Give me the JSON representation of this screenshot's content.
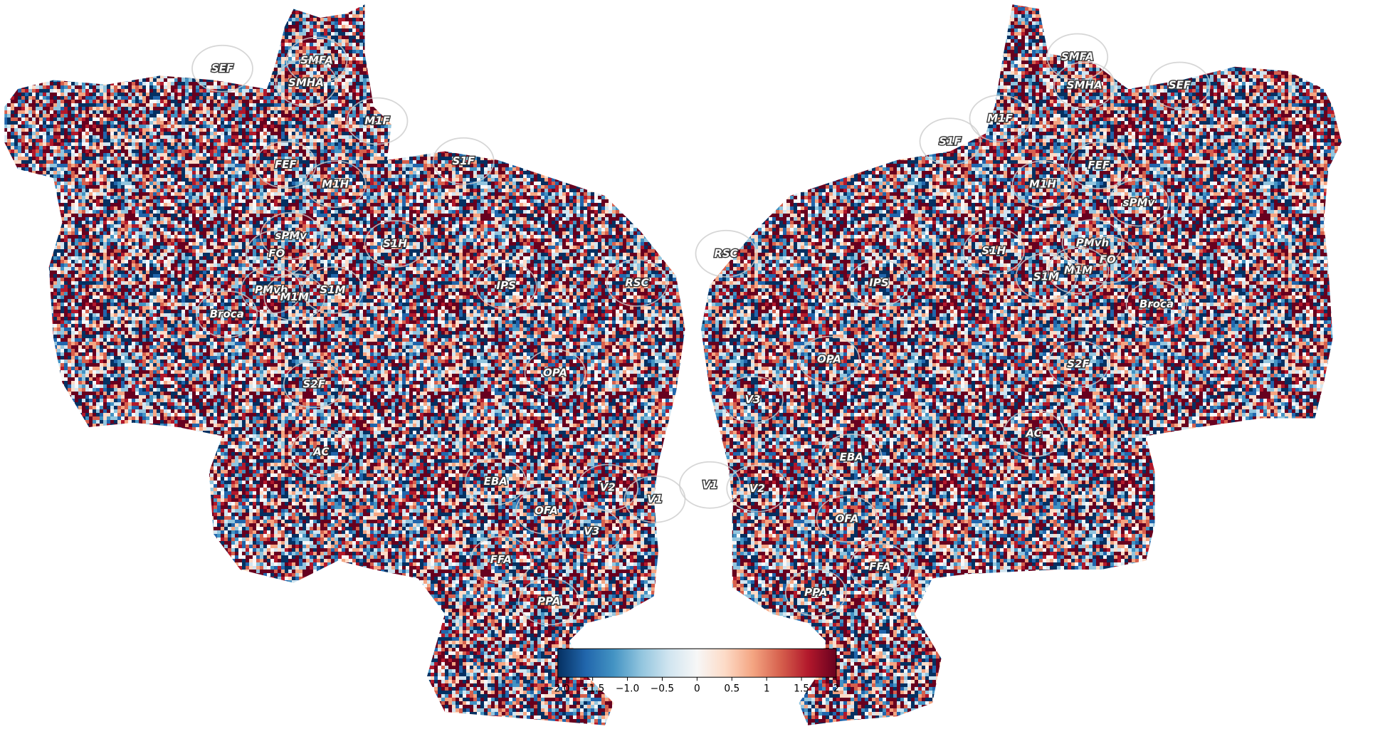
{
  "rois": {
    "left": [
      "SEF",
      "SMFA",
      "SMHA",
      "M1F",
      "FEF",
      "M1H",
      "S1F",
      "sPMv",
      "FO",
      "S1H",
      "PMvh",
      "M1M",
      "S1M",
      "Broca",
      "IPS",
      "RSC",
      "OPA",
      "S2F",
      "AC",
      "EBA",
      "V2",
      "V1",
      "OFA",
      "V3",
      "FFA",
      "PPA"
    ],
    "right": [
      "SMFA",
      "SMHA",
      "SEF",
      "M1F",
      "S1F",
      "FEF",
      "M1H",
      "sPMv",
      "PMvh",
      "S1H",
      "FO",
      "M1M",
      "S1M",
      "Broca",
      "RSC",
      "IPS",
      "OPA",
      "S2F",
      "V3",
      "AC",
      "EBA",
      "V1",
      "V2",
      "OFA",
      "FFA",
      "PPA"
    ]
  },
  "colorbar": {
    "colormap": "RdBu_r",
    "lim": [
      -2,
      2
    ],
    "ticks": [
      {
        "value": -2,
        "label": "−2.0"
      },
      {
        "value": -1.5,
        "label": "−1.5"
      },
      {
        "value": -1,
        "label": "−1.0"
      },
      {
        "value": -0.5,
        "label": "−0.5"
      },
      0.0,
      0.5,
      1.0,
      1.5,
      2.0
    ]
  }
}
